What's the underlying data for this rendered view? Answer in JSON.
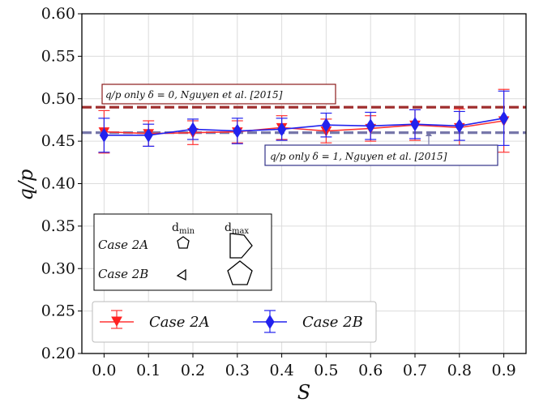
{
  "chart_data": {
    "type": "line",
    "xlabel": "S",
    "ylabel": "q/p",
    "xlim": [
      -0.05,
      0.95
    ],
    "ylim": [
      0.2,
      0.6
    ],
    "x": [
      0.0,
      0.1,
      0.2,
      0.3,
      0.4,
      0.5,
      0.6,
      0.7,
      0.8,
      0.9
    ],
    "xticks": [
      "0.0",
      "0.1",
      "0.2",
      "0.3",
      "0.4",
      "0.5",
      "0.6",
      "0.7",
      "0.8",
      "0.9"
    ],
    "yticks": [
      "0.20",
      "0.25",
      "0.30",
      "0.35",
      "0.40",
      "0.45",
      "0.50",
      "0.55",
      "0.60"
    ],
    "grid": true,
    "series": [
      {
        "name": "Case 2A",
        "color": "#ff3333",
        "marker": "triangle-down",
        "values": [
          0.461,
          0.459,
          0.46,
          0.461,
          0.466,
          0.462,
          0.465,
          0.469,
          0.466,
          0.474
        ],
        "errors": [
          0.025,
          0.015,
          0.014,
          0.013,
          0.014,
          0.014,
          0.015,
          0.018,
          0.022,
          0.037
        ]
      },
      {
        "name": "Case 2B",
        "color": "#2222ee",
        "marker": "diamond",
        "values": [
          0.457,
          0.457,
          0.464,
          0.462,
          0.464,
          0.469,
          0.468,
          0.47,
          0.468,
          0.477
        ],
        "errors": [
          0.02,
          0.013,
          0.012,
          0.015,
          0.013,
          0.014,
          0.016,
          0.017,
          0.017,
          0.032
        ]
      }
    ],
    "reference_lines": [
      {
        "value": 0.49,
        "color": "#a03030",
        "label": "q/p only δ = 0, Nguyen et al. [2015]"
      },
      {
        "value": 0.46,
        "color": "#7777aa",
        "label": "q/p only δ = 1, Nguyen et al. [2015]"
      }
    ],
    "legend": {
      "placement": "lower-center",
      "entries": [
        "Case 2A",
        "Case 2B"
      ]
    },
    "inset": {
      "col_min": "d",
      "col_min_sub": "min",
      "col_max": "d",
      "col_max_sub": "max",
      "rows": [
        "Case 2A",
        "Case 2B"
      ]
    }
  }
}
